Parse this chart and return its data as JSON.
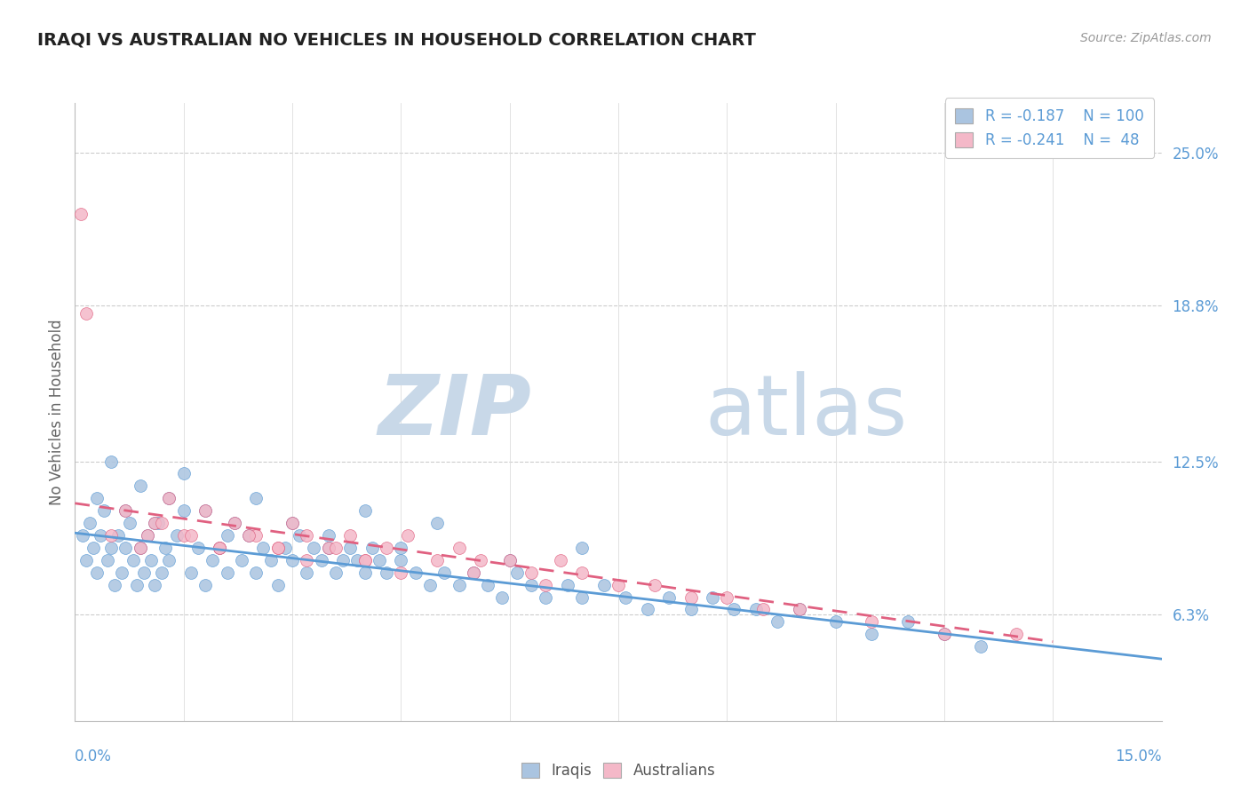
{
  "title": "IRAQI VS AUSTRALIAN NO VEHICLES IN HOUSEHOLD CORRELATION CHART",
  "source": "Source: ZipAtlas.com",
  "ylabel_label": "No Vehicles in Household",
  "xmin": 0.0,
  "xmax": 15.0,
  "ymin": 2.0,
  "ymax": 27.0,
  "ylabel_ticks": [
    6.3,
    12.5,
    18.8,
    25.0
  ],
  "iraqi_R": -0.187,
  "iraqi_N": 100,
  "australian_R": -0.241,
  "australian_N": 48,
  "iraqi_color": "#aac4e0",
  "iraqi_line_color": "#5b9bd5",
  "australian_color": "#f4b8c8",
  "australian_line_color": "#e06080",
  "watermark_zip": "ZIP",
  "watermark_atlas": "atlas",
  "watermark_color": "#c8d8e8",
  "iraqi_x": [
    0.1,
    0.15,
    0.2,
    0.25,
    0.3,
    0.35,
    0.4,
    0.45,
    0.5,
    0.55,
    0.6,
    0.65,
    0.7,
    0.75,
    0.8,
    0.85,
    0.9,
    0.95,
    1.0,
    1.05,
    1.1,
    1.15,
    1.2,
    1.25,
    1.3,
    1.4,
    1.5,
    1.6,
    1.7,
    1.8,
    1.9,
    2.0,
    2.1,
    2.2,
    2.3,
    2.4,
    2.5,
    2.6,
    2.7,
    2.8,
    2.9,
    3.0,
    3.1,
    3.2,
    3.3,
    3.4,
    3.5,
    3.6,
    3.7,
    3.8,
    3.9,
    4.0,
    4.1,
    4.2,
    4.3,
    4.5,
    4.7,
    4.9,
    5.1,
    5.3,
    5.5,
    5.7,
    5.9,
    6.1,
    6.3,
    6.5,
    6.8,
    7.0,
    7.3,
    7.6,
    7.9,
    8.2,
    8.5,
    8.8,
    9.1,
    9.4,
    9.7,
    10.0,
    10.5,
    11.0,
    11.5,
    12.0,
    12.5,
    0.3,
    0.5,
    0.7,
    0.9,
    1.1,
    1.3,
    1.5,
    1.8,
    2.1,
    2.5,
    3.0,
    3.5,
    4.0,
    4.5,
    5.0,
    6.0,
    7.0
  ],
  "iraqi_y": [
    9.5,
    8.5,
    10.0,
    9.0,
    8.0,
    9.5,
    10.5,
    8.5,
    9.0,
    7.5,
    9.5,
    8.0,
    9.0,
    10.0,
    8.5,
    7.5,
    9.0,
    8.0,
    9.5,
    8.5,
    7.5,
    10.0,
    8.0,
    9.0,
    8.5,
    9.5,
    10.5,
    8.0,
    9.0,
    7.5,
    8.5,
    9.0,
    8.0,
    10.0,
    8.5,
    9.5,
    8.0,
    9.0,
    8.5,
    7.5,
    9.0,
    8.5,
    9.5,
    8.0,
    9.0,
    8.5,
    9.0,
    8.0,
    8.5,
    9.0,
    8.5,
    8.0,
    9.0,
    8.5,
    8.0,
    8.5,
    8.0,
    7.5,
    8.0,
    7.5,
    8.0,
    7.5,
    7.0,
    8.0,
    7.5,
    7.0,
    7.5,
    7.0,
    7.5,
    7.0,
    6.5,
    7.0,
    6.5,
    7.0,
    6.5,
    6.5,
    6.0,
    6.5,
    6.0,
    5.5,
    6.0,
    5.5,
    5.0,
    11.0,
    12.5,
    10.5,
    11.5,
    10.0,
    11.0,
    12.0,
    10.5,
    9.5,
    11.0,
    10.0,
    9.5,
    10.5,
    9.0,
    10.0,
    8.5,
    9.0
  ],
  "australian_x": [
    0.08,
    0.15,
    0.5,
    0.7,
    0.9,
    1.1,
    1.3,
    1.5,
    1.8,
    2.0,
    2.2,
    2.5,
    2.8,
    3.0,
    3.2,
    3.5,
    3.8,
    4.0,
    4.3,
    4.6,
    5.0,
    5.3,
    5.6,
    6.0,
    6.3,
    6.7,
    7.0,
    7.5,
    8.0,
    8.5,
    9.0,
    9.5,
    10.0,
    11.0,
    12.0,
    13.0,
    1.0,
    1.2,
    1.6,
    2.0,
    2.4,
    2.8,
    3.2,
    3.6,
    4.0,
    4.5,
    5.5,
    6.5
  ],
  "australian_y": [
    22.5,
    18.5,
    9.5,
    10.5,
    9.0,
    10.0,
    11.0,
    9.5,
    10.5,
    9.0,
    10.0,
    9.5,
    9.0,
    10.0,
    9.5,
    9.0,
    9.5,
    8.5,
    9.0,
    9.5,
    8.5,
    9.0,
    8.5,
    8.5,
    8.0,
    8.5,
    8.0,
    7.5,
    7.5,
    7.0,
    7.0,
    6.5,
    6.5,
    6.0,
    5.5,
    5.5,
    9.5,
    10.0,
    9.5,
    9.0,
    9.5,
    9.0,
    8.5,
    9.0,
    8.5,
    8.0,
    8.0,
    7.5
  ],
  "iraqi_trend_x0": 0.0,
  "iraqi_trend_x1": 15.0,
  "iraqi_trend_y0": 9.6,
  "iraqi_trend_y1": 4.5,
  "australian_trend_x0": 0.0,
  "australian_trend_x1": 13.5,
  "australian_trend_y0": 10.8,
  "australian_trend_y1": 5.2
}
